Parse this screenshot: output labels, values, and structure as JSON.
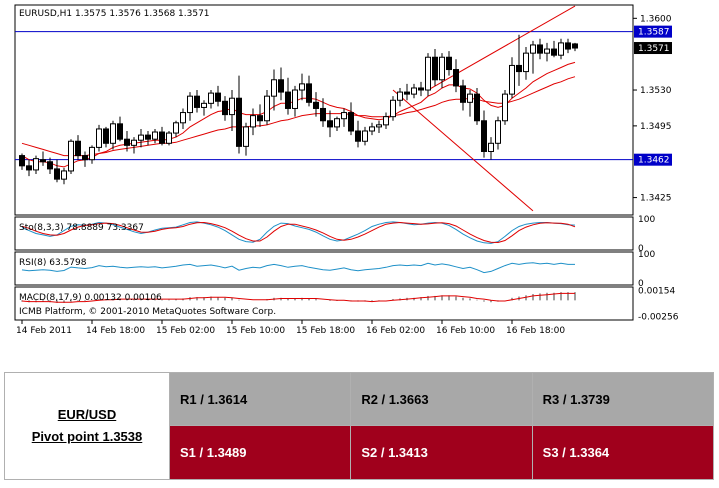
{
  "chart_data": {
    "type": "candlestick",
    "header": "EURUSD,H1  1.3575 1.3576 1.3568 1.3571",
    "copyright": "ICMB Platform, © 2001-2010 MetaQuotes Software Corp.",
    "price_ticks": [
      "1.3600",
      "1.3530",
      "1.3495",
      "1.3425"
    ],
    "price_range": [
      1.3408,
      1.3613
    ],
    "hlines": [
      {
        "value": 1.3587,
        "label": "1.3587",
        "color": "#0000c8"
      },
      {
        "value": 1.3462,
        "label": "1.3462",
        "color": "#0000c8"
      }
    ],
    "current_price": {
      "value": 1.3571,
      "label": "1.3571"
    },
    "x_labels": [
      "14 Feb 2011",
      "14 Feb 18:00",
      "15 Feb 02:00",
      "15 Feb 10:00",
      "15 Feb 18:00",
      "16 Feb 02:00",
      "16 Feb 10:00",
      "16 Feb 18:00"
    ],
    "candles": [
      [
        1.3466,
        1.3468,
        1.3452,
        1.3456
      ],
      [
        1.3456,
        1.3462,
        1.3446,
        1.3452
      ],
      [
        1.3452,
        1.3466,
        1.3448,
        1.3463
      ],
      [
        1.3462,
        1.347,
        1.3456,
        1.346
      ],
      [
        1.346,
        1.3464,
        1.3448,
        1.3453
      ],
      [
        1.3453,
        1.3462,
        1.344,
        1.3443
      ],
      [
        1.3443,
        1.3454,
        1.3438,
        1.3451
      ],
      [
        1.3451,
        1.3482,
        1.3448,
        1.348
      ],
      [
        1.348,
        1.3486,
        1.3462,
        1.3466
      ],
      [
        1.3466,
        1.347,
        1.3455,
        1.3462
      ],
      [
        1.3462,
        1.3476,
        1.3458,
        1.3474
      ],
      [
        1.3474,
        1.3496,
        1.347,
        1.3492
      ],
      [
        1.3492,
        1.3494,
        1.3474,
        1.3478
      ],
      [
        1.3478,
        1.35,
        1.3472,
        1.3497
      ],
      [
        1.3497,
        1.3504,
        1.348,
        1.3482
      ],
      [
        1.3482,
        1.349,
        1.347,
        1.3476
      ],
      [
        1.3476,
        1.3484,
        1.3468,
        1.3481
      ],
      [
        1.3481,
        1.3492,
        1.3474,
        1.3486
      ],
      [
        1.3486,
        1.349,
        1.3476,
        1.3482
      ],
      [
        1.3482,
        1.3492,
        1.3478,
        1.3489
      ],
      [
        1.3489,
        1.3494,
        1.3476,
        1.3478
      ],
      [
        1.3478,
        1.349,
        1.3476,
        1.3488
      ],
      [
        1.3488,
        1.35,
        1.3484,
        1.3498
      ],
      [
        1.3498,
        1.3512,
        1.3492,
        1.3508
      ],
      [
        1.3508,
        1.3528,
        1.35,
        1.3524
      ],
      [
        1.3524,
        1.353,
        1.3508,
        1.3513
      ],
      [
        1.3513,
        1.352,
        1.3505,
        1.3517
      ],
      [
        1.3517,
        1.353,
        1.3512,
        1.3527
      ],
      [
        1.3527,
        1.3534,
        1.3514,
        1.3519
      ],
      [
        1.3519,
        1.3524,
        1.35,
        1.3506
      ],
      [
        1.3506,
        1.353,
        1.349,
        1.3522
      ],
      [
        1.3522,
        1.3544,
        1.3468,
        1.3475
      ],
      [
        1.3475,
        1.3498,
        1.3466,
        1.3494
      ],
      [
        1.3494,
        1.3512,
        1.3486,
        1.3505
      ],
      [
        1.3505,
        1.3516,
        1.3494,
        1.35
      ],
      [
        1.35,
        1.353,
        1.3496,
        1.3524
      ],
      [
        1.3524,
        1.355,
        1.351,
        1.354
      ],
      [
        1.354,
        1.3552,
        1.352,
        1.3528
      ],
      [
        1.3528,
        1.3542,
        1.3506,
        1.3512
      ],
      [
        1.3512,
        1.3534,
        1.3504,
        1.353
      ],
      [
        1.353,
        1.3546,
        1.352,
        1.3536
      ],
      [
        1.3536,
        1.3544,
        1.3514,
        1.3518
      ],
      [
        1.3518,
        1.3528,
        1.3504,
        1.3512
      ],
      [
        1.3512,
        1.3522,
        1.3494,
        1.35
      ],
      [
        1.35,
        1.351,
        1.3484,
        1.3494
      ],
      [
        1.3494,
        1.3504,
        1.349,
        1.3502
      ],
      [
        1.3502,
        1.3512,
        1.3494,
        1.3508
      ],
      [
        1.3508,
        1.3518,
        1.3486,
        1.349
      ],
      [
        1.349,
        1.35,
        1.3474,
        1.348
      ],
      [
        1.348,
        1.3494,
        1.3476,
        1.349
      ],
      [
        1.349,
        1.3498,
        1.3486,
        1.3494
      ],
      [
        1.3494,
        1.35,
        1.3488,
        1.3496
      ],
      [
        1.3496,
        1.3508,
        1.3492,
        1.3504
      ],
      [
        1.3504,
        1.3524,
        1.35,
        1.352
      ],
      [
        1.352,
        1.3532,
        1.3514,
        1.3528
      ],
      [
        1.3528,
        1.3536,
        1.352,
        1.3526
      ],
      [
        1.3526,
        1.3536,
        1.3522,
        1.3532
      ],
      [
        1.3532,
        1.3538,
        1.3524,
        1.353
      ],
      [
        1.353,
        1.3566,
        1.3524,
        1.3562
      ],
      [
        1.3562,
        1.357,
        1.3534,
        1.354
      ],
      [
        1.354,
        1.3566,
        1.3532,
        1.3562
      ],
      [
        1.3562,
        1.3568,
        1.3544,
        1.355
      ],
      [
        1.355,
        1.356,
        1.3528,
        1.3534
      ],
      [
        1.3534,
        1.354,
        1.351,
        1.3518
      ],
      [
        1.3518,
        1.353,
        1.3504,
        1.3526
      ],
      [
        1.3526,
        1.3532,
        1.3496,
        1.35
      ],
      [
        1.35,
        1.351,
        1.3464,
        1.347
      ],
      [
        1.347,
        1.3484,
        1.3462,
        1.3478
      ],
      [
        1.3478,
        1.3504,
        1.3472,
        1.35
      ],
      [
        1.35,
        1.353,
        1.3496,
        1.3526
      ],
      [
        1.3526,
        1.3562,
        1.3522,
        1.3554
      ],
      [
        1.3554,
        1.3584,
        1.3534,
        1.3548
      ],
      [
        1.3548,
        1.3572,
        1.354,
        1.3566
      ],
      [
        1.3566,
        1.3578,
        1.3546,
        1.3574
      ],
      [
        1.3574,
        1.358,
        1.356,
        1.3566
      ],
      [
        1.3566,
        1.3576,
        1.3558,
        1.357
      ],
      [
        1.357,
        1.3578,
        1.3562,
        1.3564
      ],
      [
        1.3564,
        1.358,
        1.356,
        1.3576
      ],
      [
        1.3576,
        1.358,
        1.3566,
        1.357
      ],
      [
        1.3575,
        1.3576,
        1.3568,
        1.3571
      ]
    ],
    "ma_short": [
      1.3466,
      1.3462,
      1.346,
      1.346,
      1.3459,
      1.3456,
      1.3455,
      1.3458,
      1.3461,
      1.3462,
      1.3464,
      1.3468,
      1.347,
      1.3474,
      1.3476,
      1.3477,
      1.3478,
      1.3479,
      1.348,
      1.3481,
      1.3481,
      1.3482,
      1.3484,
      1.3488,
      1.3494,
      1.3498,
      1.3502,
      1.3506,
      1.3509,
      1.351,
      1.3512,
      1.3508,
      1.3506,
      1.3506,
      1.3506,
      1.3509,
      1.3514,
      1.3517,
      1.3517,
      1.3519,
      1.3522,
      1.3522,
      1.3521,
      1.3518,
      1.3515,
      1.3513,
      1.3512,
      1.3509,
      1.3505,
      1.3503,
      1.3502,
      1.3501,
      1.3502,
      1.3505,
      1.3509,
      1.3512,
      1.3515,
      1.3518,
      1.3524,
      1.3527,
      1.3532,
      1.3535,
      1.3535,
      1.3532,
      1.3531,
      1.3527,
      1.352,
      1.3515,
      1.3513,
      1.3515,
      1.3522,
      1.3527,
      1.3532,
      1.3538,
      1.3542,
      1.3546,
      1.3549,
      1.3552,
      1.3555,
      1.3557
    ],
    "ma_long": [
      1.3478,
      1.3476,
      1.3474,
      1.3472,
      1.347,
      1.3468,
      1.3466,
      1.3466,
      1.3466,
      1.3466,
      1.3467,
      1.3468,
      1.3469,
      1.3471,
      1.3472,
      1.3473,
      1.3474,
      1.3475,
      1.3476,
      1.3477,
      1.3478,
      1.3478,
      1.3479,
      1.3481,
      1.3483,
      1.3485,
      1.3487,
      1.3489,
      1.3491,
      1.3492,
      1.3494,
      1.3494,
      1.3494,
      1.3495,
      1.3495,
      1.3496,
      1.3498,
      1.35,
      1.3501,
      1.3503,
      1.3505,
      1.3506,
      1.3507,
      1.3507,
      1.3507,
      1.3507,
      1.3507,
      1.3506,
      1.3505,
      1.3505,
      1.3504,
      1.3504,
      1.3504,
      1.3505,
      1.3506,
      1.3508,
      1.3509,
      1.3511,
      1.3513,
      1.3515,
      1.3518,
      1.352,
      1.3521,
      1.3521,
      1.3522,
      1.3521,
      1.3519,
      1.3518,
      1.3517,
      1.3517,
      1.3519,
      1.3521,
      1.3524,
      1.3527,
      1.353,
      1.3533,
      1.3536,
      1.3538,
      1.3541,
      1.3543
    ],
    "trendlines": [
      {
        "from": [
          58,
          1.353
        ],
        "to": [
          79,
          1.3612
        ],
        "color": "#e00000"
      },
      {
        "from": [
          53,
          1.353
        ],
        "to": [
          73,
          1.3412
        ],
        "color": "#e00000"
      }
    ],
    "stoch": {
      "label": "Sto(8,3,3) 78.8889 73.3367",
      "ticks": [
        "100",
        "0"
      ],
      "main": [
        70,
        60,
        50,
        45,
        40,
        45,
        60,
        75,
        80,
        78,
        82,
        88,
        86,
        80,
        72,
        64,
        56,
        50,
        55,
        62,
        68,
        70,
        72,
        80,
        88,
        90,
        86,
        80,
        72,
        60,
        45,
        30,
        22,
        20,
        30,
        55,
        75,
        86,
        84,
        76,
        70,
        64,
        55,
        42,
        30,
        24,
        28,
        38,
        48,
        60,
        74,
        82,
        88,
        90,
        88,
        84,
        80,
        82,
        86,
        88,
        86,
        78,
        64,
        48,
        35,
        24,
        18,
        16,
        22,
        40,
        60,
        74,
        82,
        86,
        88,
        88,
        86,
        84,
        80,
        79
      ],
      "signal": [
        75,
        68,
        58,
        50,
        45,
        44,
        50,
        62,
        72,
        78,
        80,
        84,
        86,
        84,
        78,
        70,
        62,
        55,
        54,
        58,
        64,
        68,
        70,
        74,
        82,
        87,
        88,
        84,
        78,
        70,
        58,
        44,
        32,
        24,
        24,
        38,
        58,
        74,
        82,
        82,
        76,
        70,
        62,
        52,
        40,
        30,
        27,
        30,
        38,
        48,
        60,
        72,
        82,
        86,
        88,
        86,
        84,
        82,
        83,
        86,
        87,
        84,
        76,
        62,
        48,
        36,
        26,
        20,
        19,
        26,
        42,
        60,
        72,
        80,
        85,
        87,
        86,
        85,
        82,
        73
      ]
    },
    "rsi": {
      "label": "RSI(8) 63.5798",
      "ticks": [
        "100",
        "0"
      ],
      "values": [
        45,
        42,
        44,
        46,
        44,
        40,
        43,
        55,
        52,
        50,
        53,
        60,
        56,
        58,
        54,
        52,
        54,
        56,
        54,
        56,
        52,
        55,
        58,
        62,
        64,
        58,
        60,
        62,
        58,
        52,
        58,
        44,
        50,
        54,
        52,
        60,
        64,
        60,
        54,
        58,
        60,
        54,
        50,
        46,
        44,
        48,
        52,
        46,
        42,
        46,
        48,
        50,
        54,
        60,
        62,
        60,
        62,
        60,
        68,
        62,
        66,
        62,
        56,
        50,
        54,
        46,
        36,
        40,
        50,
        60,
        68,
        64,
        68,
        70,
        66,
        68,
        64,
        68,
        64,
        64
      ]
    },
    "macd": {
      "label": "MACD(8,17,9) 0.00132 0.00106",
      "ticks": [
        "0.00154",
        "-0.00256"
      ],
      "range": [
        -0.0028,
        0.0018
      ],
      "hist": [
        -0.0002,
        -0.0003,
        -0.0003,
        -0.0002,
        -0.0003,
        -0.0004,
        -0.0004,
        -0.0002,
        -0.0001,
        -0.0001,
        0.0,
        0.0002,
        0.0002,
        0.0003,
        0.0003,
        0.0002,
        0.0002,
        0.0002,
        0.0002,
        0.0002,
        0.0001,
        0.0001,
        0.0002,
        0.0003,
        0.0005,
        0.0005,
        0.0005,
        0.0006,
        0.0005,
        0.0004,
        0.0004,
        0.0001,
        0.0,
        0.0,
        0.0,
        0.0002,
        0.0004,
        0.0004,
        0.0003,
        0.0003,
        0.0004,
        0.0003,
        0.0002,
        0.0,
        -0.0001,
        -0.0001,
        0.0,
        -0.0001,
        -0.0002,
        -0.0002,
        -0.0002,
        -0.0001,
        0.0,
        0.0002,
        0.0003,
        0.0004,
        0.0004,
        0.0005,
        0.0007,
        0.0007,
        0.0008,
        0.0008,
        0.0006,
        0.0004,
        0.0003,
        0.0001,
        -0.0002,
        -0.0003,
        -0.0002,
        0.0,
        0.0004,
        0.0006,
        0.0008,
        0.001,
        0.0011,
        0.0012,
        0.0012,
        0.0013,
        0.0013,
        0.0013
      ],
      "signal": [
        -0.0001,
        -0.0002,
        -0.0002,
        -0.0002,
        -0.0002,
        -0.0003,
        -0.0003,
        -0.0003,
        -0.0002,
        -0.0002,
        -0.0001,
        0.0,
        0.0001,
        0.0001,
        0.0002,
        0.0002,
        0.0002,
        0.0002,
        0.0002,
        0.0002,
        0.0002,
        0.0002,
        0.0002,
        0.0002,
        0.0003,
        0.0004,
        0.0004,
        0.0005,
        0.0005,
        0.0005,
        0.0004,
        0.0003,
        0.0002,
        0.0001,
        0.0001,
        0.0001,
        0.0002,
        0.0003,
        0.0003,
        0.0003,
        0.0003,
        0.0003,
        0.0003,
        0.0002,
        0.0001,
        0.0,
        0.0,
        -0.0001,
        -0.0001,
        -0.0001,
        -0.0002,
        -0.0001,
        -0.0001,
        0.0,
        0.0001,
        0.0002,
        0.0003,
        0.0004,
        0.0005,
        0.0006,
        0.0007,
        0.0007,
        0.0007,
        0.0006,
        0.0005,
        0.0003,
        0.0002,
        0.0,
        -0.0001,
        -0.0001,
        0.0001,
        0.0003,
        0.0005,
        0.0007,
        0.0008,
        0.0009,
        0.001,
        0.0011,
        0.0011,
        0.0011
      ]
    }
  },
  "pivot": {
    "pair": "EUR/USD",
    "pivot_point": "Pivot point 1.3538",
    "r1": "R1 / 1.3614",
    "r2": "R2 / 1.3663",
    "r3": "R3 / 1.3739",
    "s1": "S1 / 1.3489",
    "s2": "S2 / 1.3413",
    "s3": "S3 / 1.3364"
  }
}
